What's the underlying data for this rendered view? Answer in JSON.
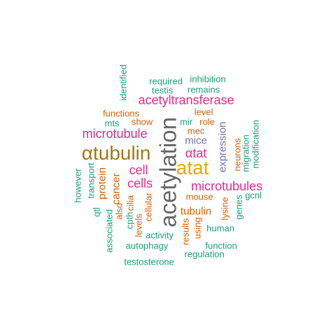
{
  "colors": {
    "teal": "#1B9E77",
    "orange": "#D95F02",
    "purple": "#7570B3",
    "magenta": "#E7298A",
    "olive": "#A6761D",
    "gold": "#E6AB02",
    "gray": "#666666"
  },
  "words": {
    "acetylation": "acetylation",
    "atat": "atat",
    "atubulin": "αtubulin",
    "microtubules": "microtubules",
    "acetyltransferase": "acetyltransferase",
    "microtubule": "microtubule",
    "atat_greek": "αtat",
    "cell": "cell",
    "cells": "cells",
    "expression": "expression",
    "mice": "mice",
    "identified": "identified",
    "required": "required",
    "inhibition": "inhibition",
    "testis": "testis",
    "remains": "remains",
    "functions": "functions",
    "level": "level",
    "mts": "mts",
    "show": "show",
    "mir": "mir",
    "role": "role",
    "mec": "mec",
    "modification": "modification",
    "migration": "migration",
    "neurons": "neurons",
    "however": "however",
    "transport": "transport",
    "protein": "protein",
    "cancer": "cancer",
    "also": "also",
    "qtl": "qtl",
    "cilia": "cilia",
    "cpth": "cpth",
    "cellular": "cellular",
    "levels": "levels",
    "associated": "associated",
    "tubulin": "tubulin",
    "mouse": "mouse",
    "lysine": "lysine",
    "genes": "genes",
    "gcnl": "gcnl",
    "results": "results",
    "using": "using",
    "human": "human",
    "activity": "activity",
    "autophagy": "autophagy",
    "function": "function",
    "regulation": "regulation",
    "testosterone": "testosterone"
  }
}
